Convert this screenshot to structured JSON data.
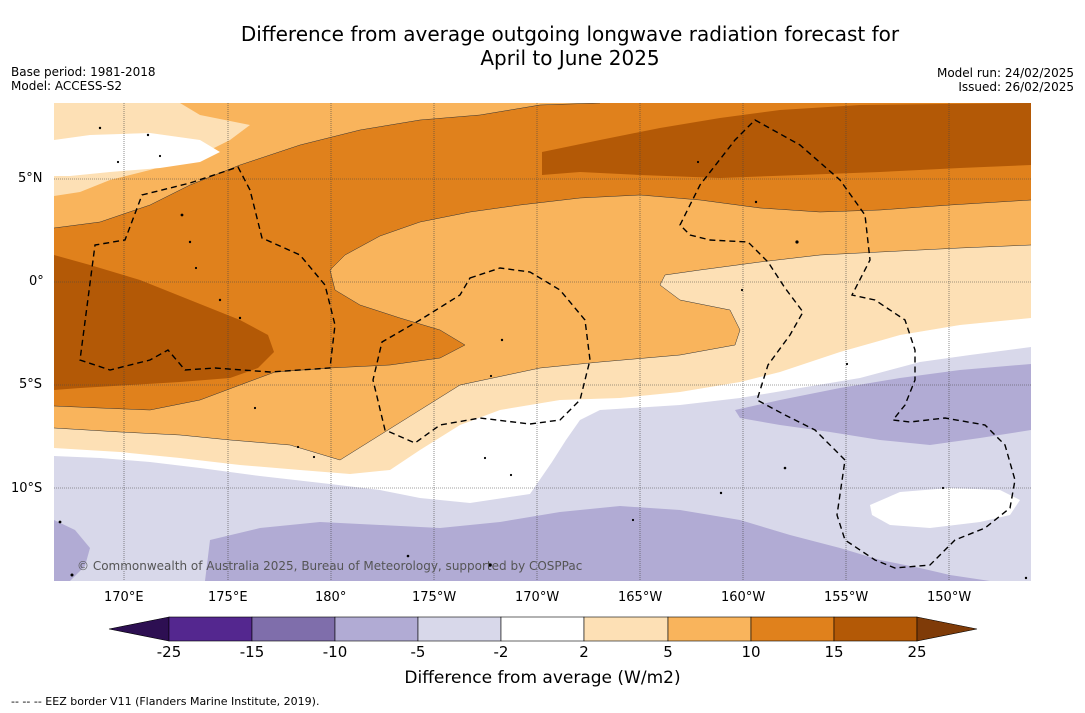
{
  "title": {
    "line1": "Difference from average outgoing longwave radiation forecast for",
    "line2": "April to June 2025"
  },
  "meta": {
    "base_period": "Base period: 1981-2018",
    "model": "Model: ACCESS-S2",
    "model_run": "Model run: 24/02/2025",
    "issued": "Issued: 26/02/2025"
  },
  "map": {
    "lat_ticks": [
      "5°N",
      "0°",
      "5°S",
      "10°S"
    ],
    "lon_ticks": [
      "170°E",
      "175°E",
      "180°",
      "175°W",
      "170°W",
      "165°W",
      "160°W",
      "155°W",
      "150°W"
    ],
    "copyright": "© Commonwealth of Australia 2025, Bureau of Meteorology, supported by COSPPac",
    "grid": true
  },
  "colorbar": {
    "title": "Difference from average (W/m2)",
    "labels": [
      "-25",
      "-15",
      "-10",
      "-5",
      "-2",
      "2",
      "5",
      "10",
      "15",
      "25"
    ],
    "colors": [
      "#54278f",
      "#7f6eab",
      "#b1abd4",
      "#d8d8ea",
      "#ffffff",
      "#fde0b5",
      "#f9b45c",
      "#e0811c",
      "#b35906"
    ],
    "under_color": "#2d0f52",
    "over_color": "#7f3b08"
  },
  "footer": {
    "legend": "-- -- -- EEZ border V11 (Flanders Marine Institute, 2019)."
  }
}
